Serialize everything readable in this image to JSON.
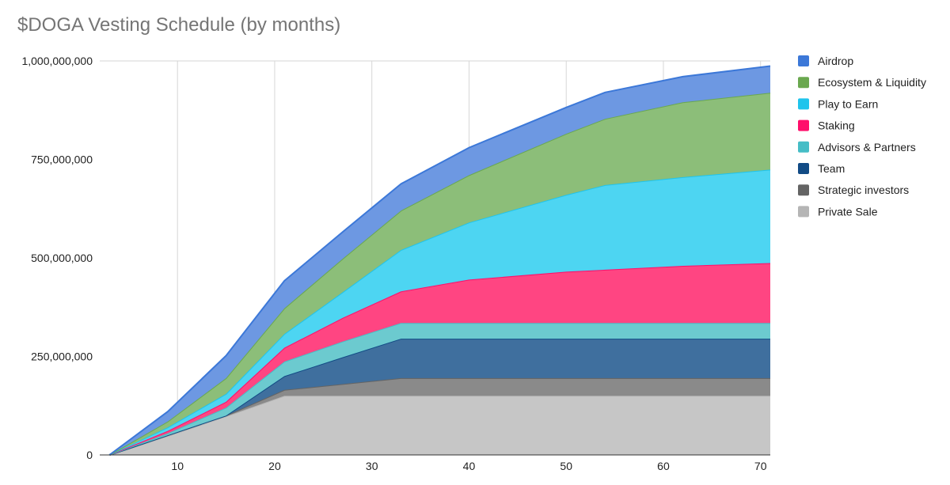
{
  "chart_data": {
    "type": "area",
    "stacked": true,
    "title": "$DOGA Vesting Schedule (by months)",
    "xlabel": "",
    "ylabel": "",
    "xlim": [
      2,
      71
    ],
    "ylim": [
      0,
      1000000000
    ],
    "x_ticks": [
      10,
      20,
      30,
      40,
      50,
      60,
      70
    ],
    "y_ticks": [
      0,
      250000000,
      500000000,
      750000000,
      1000000000
    ],
    "y_tick_labels": [
      "0",
      "250,000,000",
      "500,000,000",
      "750,000,000",
      "1,000,000,000"
    ],
    "grid": "vertical",
    "legend_position": "right",
    "x": [
      3,
      9,
      15,
      21,
      27,
      33,
      40,
      50,
      54,
      62,
      71
    ],
    "series": [
      {
        "name": "Private Sale",
        "color": "#c6c6c6",
        "line_color": "#b5b5b5",
        "values": [
          0,
          48000000,
          98000000,
          150000000,
          150000000,
          150000000,
          150000000,
          150000000,
          150000000,
          150000000,
          150000000
        ]
      },
      {
        "name": "Strategic investors",
        "color": "#8a8a8a",
        "line_color": "#646464",
        "values": [
          0,
          2000000,
          2000000,
          15000000,
          30000000,
          45000000,
          45000000,
          45000000,
          45000000,
          45000000,
          45000000
        ]
      },
      {
        "name": "Team",
        "color": "#3f6f9e",
        "line_color": "#124b85",
        "values": [
          0,
          0,
          0,
          35000000,
          68000000,
          100000000,
          100000000,
          100000000,
          100000000,
          100000000,
          100000000
        ]
      },
      {
        "name": "Advisors & Partners",
        "color": "#6ccacf",
        "line_color": "#46bdc6",
        "values": [
          0,
          5000000,
          20000000,
          37000000,
          40000000,
          40000000,
          40000000,
          40000000,
          40000000,
          40000000,
          40000000
        ]
      },
      {
        "name": "Staking",
        "color": "#ff4582",
        "line_color": "#ff0f6b",
        "values": [
          0,
          6000000,
          15000000,
          35000000,
          60000000,
          80000000,
          110000000,
          130000000,
          135000000,
          145000000,
          152000000
        ]
      },
      {
        "name": "Play to Earn",
        "color": "#4dd5f2",
        "line_color": "#1fc4ec",
        "values": [
          0,
          9000000,
          20000000,
          35000000,
          65000000,
          105000000,
          145000000,
          195000000,
          215000000,
          225000000,
          237000000
        ]
      },
      {
        "name": "Ecosystem & Liquidity",
        "color": "#8cbe79",
        "line_color": "#6aa84f",
        "values": [
          0,
          15000000,
          40000000,
          65000000,
          85000000,
          100000000,
          120000000,
          155000000,
          168000000,
          190000000,
          195000000
        ]
      },
      {
        "name": "Airdrop",
        "color": "#6d98e2",
        "line_color": "#3c78d8",
        "values": [
          0,
          25000000,
          57000000,
          70000000,
          68000000,
          68000000,
          70000000,
          67000000,
          67000000,
          65000000,
          68000000
        ]
      }
    ]
  }
}
